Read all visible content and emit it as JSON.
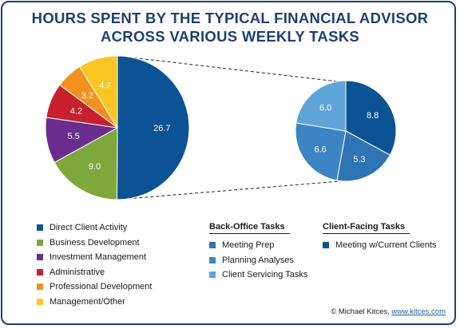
{
  "title_line1": "HOURS SPENT BY THE TYPICAL FINANCIAL ADVISOR",
  "title_line2": "ACROSS VARIOUS WEEKLY TASKS",
  "chart_data": [
    {
      "type": "pie",
      "slices": [
        {
          "label": "Direct Client Activity",
          "value": 26.7,
          "color": "#0b5394"
        },
        {
          "label": "Business Development",
          "value": 9.0,
          "color": "#7ea83b"
        },
        {
          "label": "Investment Management",
          "value": 5.5,
          "color": "#6a2d8f"
        },
        {
          "label": "Administrative",
          "value": 4.2,
          "color": "#c6202e"
        },
        {
          "label": "Professional Development",
          "value": 3.2,
          "color": "#f39020"
        },
        {
          "label": "Management/Other",
          "value": 4.7,
          "color": "#f9c623"
        }
      ],
      "data_labels": [
        "26.7",
        "9.0",
        "5.5",
        "4.2",
        "3.2",
        "4.7"
      ]
    },
    {
      "type": "pie",
      "slices": [
        {
          "label": "Meeting w/Current Clients",
          "value": 8.8,
          "color": "#0b5394"
        },
        {
          "label": "Meeting Prep",
          "value": 5.3,
          "color": "#2f74b5"
        },
        {
          "label": "Planning Analyses",
          "value": 6.6,
          "color": "#3d84c4"
        },
        {
          "label": "Client Servicing Tasks",
          "value": 6.0,
          "color": "#5fa4d8"
        }
      ],
      "data_labels": [
        "8.8",
        "5.3",
        "6.6",
        "6.0"
      ]
    }
  ],
  "legend_main": [
    {
      "label": "Direct Client Activity",
      "color": "#0b5394"
    },
    {
      "label": "Business Development",
      "color": "#7ea83b"
    },
    {
      "label": "Investment Management",
      "color": "#6a2d8f"
    },
    {
      "label": "Administrative",
      "color": "#c6202e"
    },
    {
      "label": "Professional Development",
      "color": "#f39020"
    },
    {
      "label": "Management/Other",
      "color": "#f9c623"
    }
  ],
  "legend_back_office": {
    "heading": "Back-Office Tasks",
    "items": [
      {
        "label": "Meeting Prep",
        "color": "#2f74b5"
      },
      {
        "label": "Planning Analyses",
        "color": "#3d84c4"
      },
      {
        "label": "Client Servicing Tasks",
        "color": "#5fa4d8"
      }
    ]
  },
  "legend_client_facing": {
    "heading": "Client-Facing Tasks",
    "items": [
      {
        "label": "Meeting w/Current Clients",
        "color": "#0b5394"
      }
    ]
  },
  "credit": {
    "text": "© Michael Kitces, ",
    "link": "www.kitces.com"
  }
}
